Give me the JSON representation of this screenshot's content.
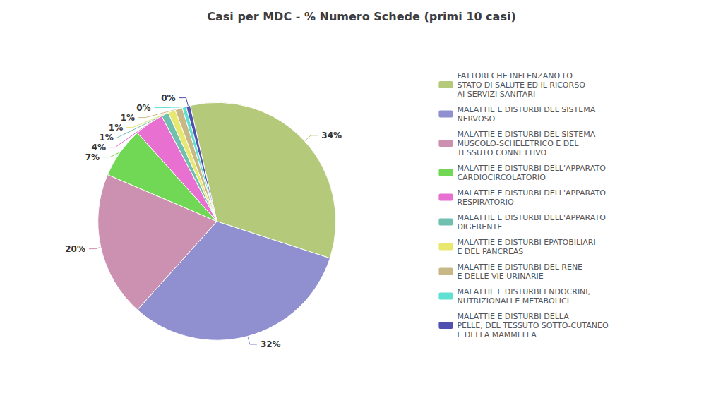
{
  "chart_data": {
    "type": "pie",
    "title": "Casi per MDC - % Numero Schede (primi 10 casi)",
    "categories": [
      "FATTORI CHE INFLENZANO LO\nSTATO DI SALUTE ED IL RICORSO\nAI SERVIZI SANITARI",
      "MALATTIE E DISTURBI DEL SISTEMA\nNERVOSO",
      "MALATTIE E DISTURBI DEL SISTEMA\nMUSCOLO-SCHELETRICO E DEL\nTESSUTO CONNETTIVO",
      "MALATTIE E DISTURBI DELL'APPARATO\nCARDIOCIRCOLATORIO",
      "MALATTIE E DISTURBI DELL'APPARATO\nRESPIRATORIO",
      "MALATTIE E DISTURBI DELL'APPARATO\nDIGERENTE",
      "MALATTIE E DISTURBI EPATOBILIARI\nE DEL PANCREAS",
      "MALATTIE E DISTURBI DEL RENE\nE DELLE VIE URINARIE",
      "MALATTIE E DISTURBI ENDOCRINI,\nNUTRIZIONALI E METABOLICI",
      "MALATTIE E DISTURBI DELLA\nPELLE, DEL TESSUTO SOTTO-CUTANEO\nE DELLA MAMMELLA"
    ],
    "values": [
      34,
      32,
      20,
      7,
      4,
      1,
      1,
      1,
      0,
      0
    ],
    "value_labels": [
      "34%",
      "32%",
      "20%",
      "7%",
      "4%",
      "1%",
      "1%",
      "1%",
      "0%",
      "0%"
    ],
    "colors": [
      "#b5c97a",
      "#9090d0",
      "#cc90b0",
      "#70d855",
      "#e870d0",
      "#70c0b0",
      "#e8e870",
      "#c8b888",
      "#60e0d0",
      "#5050b0"
    ],
    "legend": "right",
    "data_labels": true
  }
}
